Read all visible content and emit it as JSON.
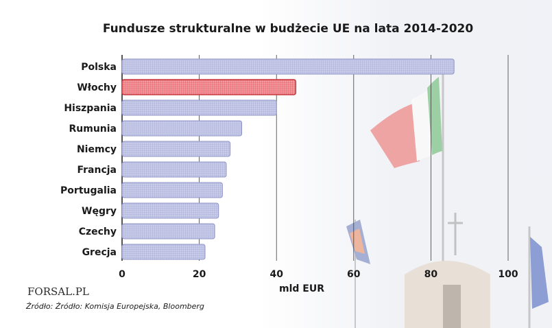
{
  "chart_data": {
    "type": "bar",
    "orientation": "horizontal",
    "title": "Fundusze strukturalne w budżecie UE na lata 2014-2020",
    "categories": [
      "Polska",
      "Włochy",
      "Hiszpania",
      "Rumunia",
      "Niemcy",
      "Francja",
      "Portugalia",
      "Węgry",
      "Czechy",
      "Grecja"
    ],
    "values": [
      86,
      45,
      40,
      31,
      28,
      27,
      26,
      25,
      24,
      21.5
    ],
    "highlight": "Włochy",
    "xlabel": "mld EUR",
    "xlim": [
      0,
      100
    ],
    "xticks": [
      "0",
      "20",
      "40",
      "60",
      "80",
      "100"
    ],
    "grid": "vertical",
    "colors": {
      "bar": "#c4c8e6",
      "bar_stroke": "#8e94c6",
      "highlight": "#f07a80",
      "highlight_stroke": "#c8323c"
    }
  },
  "source": "Źródło: Źródło: Komisja Europejska, Bloomberg",
  "logo": {
    "text": "FORSAL.PL"
  }
}
